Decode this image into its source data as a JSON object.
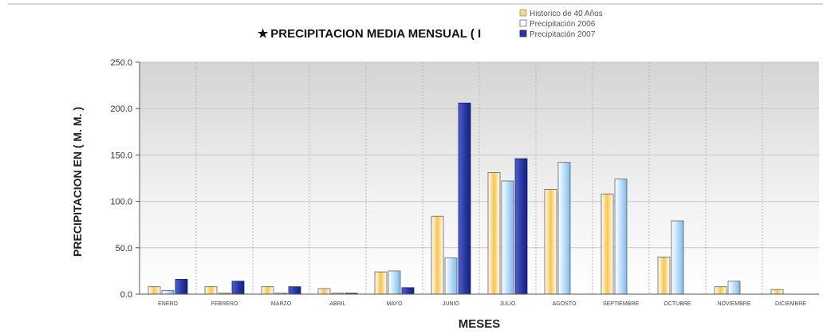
{
  "chart_data": {
    "type": "bar",
    "title": "PRECIPITACION MEDIA MENSUAL ( I",
    "title_marker": "★",
    "xlabel": "MESES",
    "ylabel": "PRECIPITACION EN ( M. M. )",
    "ylim": [
      0,
      250
    ],
    "yticks": [
      "0.0",
      "50.0",
      "100.0",
      "150.0",
      "200.0",
      "250.0"
    ],
    "grid": true,
    "legend_position": "top-right",
    "categories": [
      "ENERO",
      "FEBRERO",
      "MARZO",
      "ABRIL",
      "MAYO",
      "JUNIO",
      "JULIO",
      "AGOSTO",
      "SEPTIEMBRE",
      "OCTUBRE",
      "NOVIEMBRE",
      "DICIEMBRE"
    ],
    "series": [
      {
        "name": "Historico de 40 Años",
        "color": "#f2b93b",
        "values": [
          8,
          8,
          8,
          6,
          24,
          84,
          131,
          113,
          108,
          40,
          8,
          5
        ]
      },
      {
        "name": "Precipitación 2006",
        "color": "#8fc3ef",
        "values": [
          4,
          1,
          1,
          1,
          25,
          39,
          122,
          142,
          124,
          79,
          14,
          0
        ]
      },
      {
        "name": "Precipitación 2007",
        "color": "#28379e",
        "values": [
          16,
          14,
          8,
          1,
          7,
          206,
          146,
          0,
          0,
          0,
          0,
          0
        ]
      }
    ]
  }
}
